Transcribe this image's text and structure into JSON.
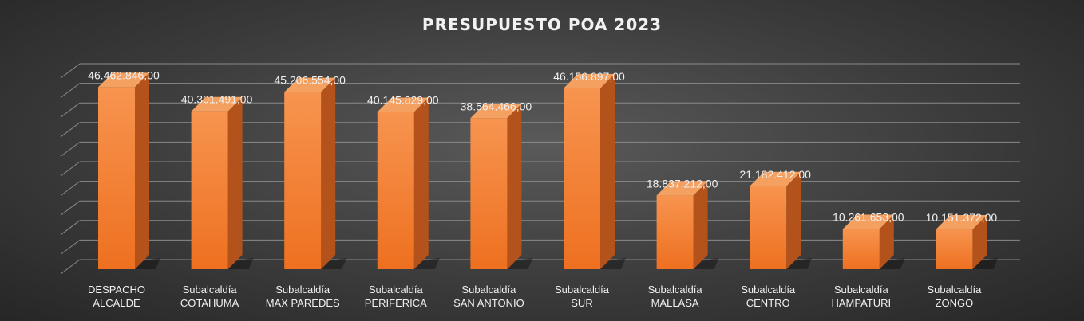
{
  "chart_data": {
    "type": "bar",
    "title": "PRESUPUESTO POA 2023",
    "categories": [
      [
        "DESPACHO",
        "ALCALDE"
      ],
      [
        "Subalcaldía",
        "COTAHUMA"
      ],
      [
        "Subalcaldía",
        "MAX PAREDES"
      ],
      [
        "Subalcaldía",
        "PERIFERICA"
      ],
      [
        "Subalcaldía",
        "SAN ANTONIO"
      ],
      [
        "Subalcaldía",
        "SUR"
      ],
      [
        "Subalcaldía",
        "MALLASA"
      ],
      [
        "Subalcaldía",
        "CENTRO"
      ],
      [
        "Subalcaldía",
        "HAMPATURI"
      ],
      [
        "Subalcaldía",
        "ZONGO"
      ]
    ],
    "values": [
      46462846,
      40301491,
      45206554,
      40145829,
      38564466,
      46156897,
      18837212,
      21182412,
      10261653,
      10151372
    ],
    "value_labels": [
      "46.462.846,00",
      "40.301.491,00",
      "45.206.554,00",
      "40.145.829,00",
      "38.564.466,00",
      "46.156.897,00",
      "18.837.212,00",
      "21.182.412,00",
      "10.261.653,00",
      "10.151.372,00"
    ],
    "xlabel": "",
    "ylabel": "",
    "ylim": [
      0,
      50000000
    ],
    "grid": true,
    "legend": "none",
    "style": "3d-column",
    "colors": {
      "bar_front_top": "#f7944f",
      "bar_front_bottom": "#ee7020",
      "bar_side": "#b3521a",
      "bar_top": "#f4a060",
      "gridline": "#8a8a8a",
      "text": "#f0f0f0"
    }
  }
}
